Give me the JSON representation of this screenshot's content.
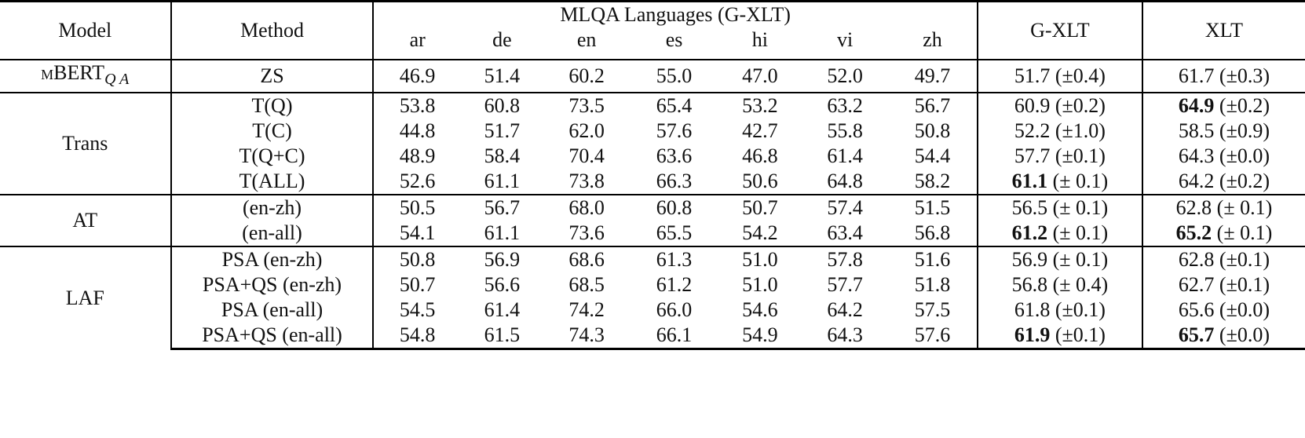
{
  "header": {
    "model": "Model",
    "method": "Method",
    "group": "MLQA Languages (G-XLT)",
    "langs": [
      "ar",
      "de",
      "en",
      "es",
      "hi",
      "vi",
      "zh"
    ],
    "gxlt": "G-XLT",
    "xlt": "XLT"
  },
  "groups": [
    {
      "model": "mBERT",
      "model_sub": "Q A",
      "rows": [
        {
          "method": "ZS",
          "values": [
            "46.9",
            "51.4",
            "60.2",
            "55.0",
            "47.0",
            "52.0",
            "49.7"
          ],
          "gxlt": "51.7",
          "gxlt_sd": "(±0.4)",
          "xlt": "61.7",
          "xlt_sd": "(±0.3)",
          "bold": []
        }
      ]
    },
    {
      "model": "Trans",
      "rows": [
        {
          "method": "T(Q)",
          "values": [
            "53.8",
            "60.8",
            "73.5",
            "65.4",
            "53.2",
            "63.2",
            "56.7"
          ],
          "gxlt": "60.9",
          "gxlt_sd": "(±0.2)",
          "xlt": "64.9",
          "xlt_sd": "(±0.2)",
          "bold": [
            0,
            4,
            "xlt"
          ]
        },
        {
          "method": "T(C)",
          "values": [
            "44.8",
            "51.7",
            "62.0",
            "57.6",
            "42.7",
            "55.8",
            "50.8"
          ],
          "gxlt": "52.2",
          "gxlt_sd": "(±1.0)",
          "xlt": "58.5",
          "xlt_sd": "(±0.9)",
          "bold": []
        },
        {
          "method": "T(Q+C)",
          "values": [
            "48.9",
            "58.4",
            "70.4",
            "63.6",
            "46.8",
            "61.4",
            "54.4"
          ],
          "gxlt": "57.7",
          "gxlt_sd": "(±0.1)",
          "xlt": "64.3",
          "xlt_sd": "(±0.0)",
          "bold": []
        },
        {
          "method": "T(ALL)",
          "values": [
            "52.6",
            "61.1",
            "73.8",
            "66.3",
            "50.6",
            "64.8",
            "58.2"
          ],
          "gxlt": "61.1",
          "gxlt_sd": "(± 0.1)",
          "xlt": "64.2",
          "xlt_sd": "(±0.2)",
          "bold": [
            1,
            2,
            3,
            5,
            6,
            "gxlt"
          ]
        }
      ]
    },
    {
      "model": "AT",
      "rows": [
        {
          "method": "(en-zh)",
          "values": [
            "50.5",
            "56.7",
            "68.0",
            "60.8",
            "50.7",
            "57.4",
            "51.5"
          ],
          "gxlt": "56.5",
          "gxlt_sd": "(± 0.1)",
          "xlt": "62.8",
          "xlt_sd": "(± 0.1)",
          "bold": []
        },
        {
          "method": "(en-all)",
          "values": [
            "54.1",
            "61.1",
            "73.6",
            "65.5",
            "54.2",
            "63.4",
            "56.8"
          ],
          "gxlt": "61.2",
          "gxlt_sd": "(± 0.1)",
          "xlt": "65.2",
          "xlt_sd": "(± 0.1)",
          "bold": [
            0,
            1,
            2,
            3,
            4,
            5,
            6,
            "gxlt",
            "xlt"
          ]
        }
      ]
    },
    {
      "model": "LAF",
      "rows": [
        {
          "method": "PSA (en-zh)",
          "values": [
            "50.8",
            "56.9",
            "68.6",
            "61.3",
            "51.0",
            "57.8",
            "51.6"
          ],
          "gxlt": "56.9",
          "gxlt_sd": "(± 0.1)",
          "xlt": "62.8",
          "xlt_sd": "(±0.1)",
          "bold": []
        },
        {
          "method": "PSA+QS (en-zh)",
          "values": [
            "50.7",
            "56.6",
            "68.5",
            "61.2",
            "51.0",
            "57.7",
            "51.8"
          ],
          "gxlt": "56.8",
          "gxlt_sd": "(± 0.4)",
          "xlt": "62.7",
          "xlt_sd": "(±0.1)",
          "bold": []
        },
        {
          "method": "PSA (en-all)",
          "values": [
            "54.5",
            "61.4",
            "74.2",
            "66.0",
            "54.6",
            "64.2",
            "57.5"
          ],
          "gxlt": "61.8",
          "gxlt_sd": "(±0.1)",
          "xlt": "65.6",
          "xlt_sd": "(±0.0)",
          "bold": []
        },
        {
          "method": "PSA+QS (en-all)",
          "values": [
            "54.8",
            "61.5",
            "74.3",
            "66.1",
            "54.9",
            "64.3",
            "57.6"
          ],
          "gxlt": "61.9",
          "gxlt_sd": "(±0.1)",
          "xlt": "65.7",
          "xlt_sd": "(±0.0)",
          "bold": [
            0,
            1,
            2,
            3,
            4,
            5,
            6,
            "gxlt",
            "xlt"
          ]
        }
      ]
    }
  ]
}
